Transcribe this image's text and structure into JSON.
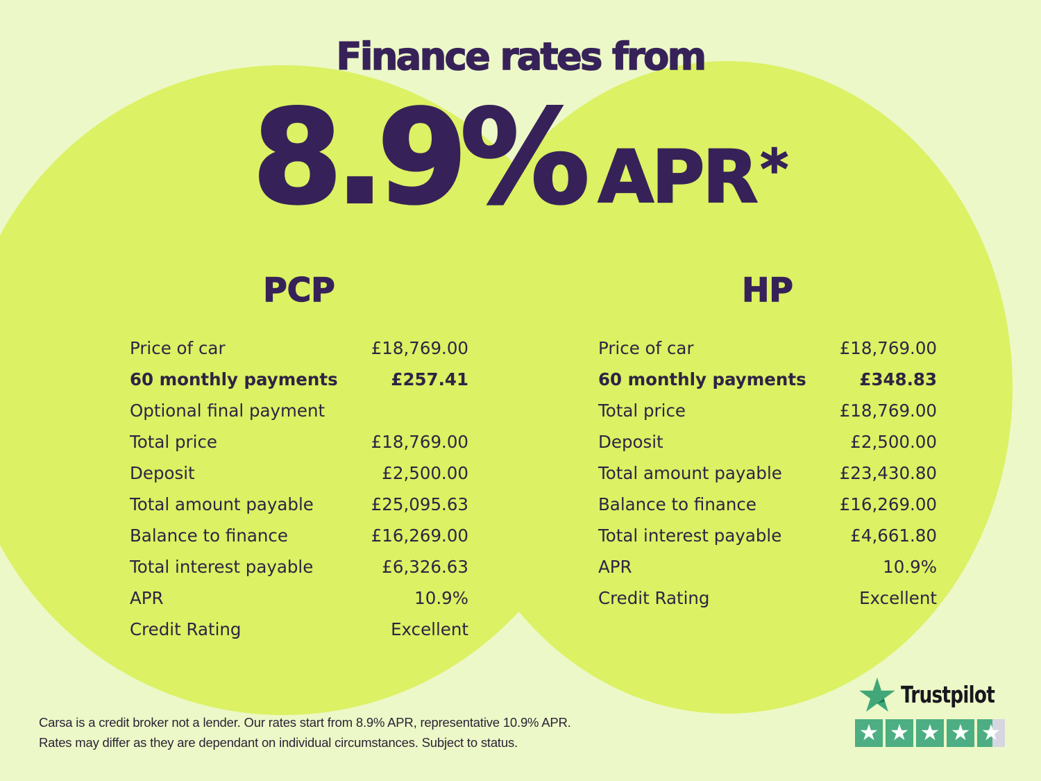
{
  "title": "Finance rates from",
  "hero": {
    "rate": "8.9%",
    "unit": "APR",
    "asterisk": "*"
  },
  "tables": [
    {
      "header": "PCP",
      "rows": [
        {
          "label": "Price of car",
          "value": "£18,769.00"
        },
        {
          "label": "60 monthly payments",
          "value": "£257.41",
          "bold": true
        },
        {
          "label": "Optional final payment",
          "value": ""
        },
        {
          "label": "Total price",
          "value": "£18,769.00"
        },
        {
          "label": "Deposit",
          "value": "£2,500.00"
        },
        {
          "label": "Total amount payable",
          "value": "£25,095.63"
        },
        {
          "label": "Balance to finance",
          "value": "£16,269.00"
        },
        {
          "label": "Total interest payable",
          "value": "£6,326.63"
        },
        {
          "label": "APR",
          "value": "10.9%"
        },
        {
          "label": "Credit Rating",
          "value": "Excellent"
        }
      ]
    },
    {
      "header": "HP",
      "rows": [
        {
          "label": "Price of car",
          "value": "£18,769.00"
        },
        {
          "label": "60 monthly payments",
          "value": "£348.83",
          "bold": true
        },
        {
          "label": "Total price",
          "value": "£18,769.00"
        },
        {
          "label": "Deposit",
          "value": "£2,500.00"
        },
        {
          "label": "Total amount payable",
          "value": "£23,430.80"
        },
        {
          "label": "Balance to finance",
          "value": "£16,269.00"
        },
        {
          "label": "Total interest payable",
          "value": "£4,661.80"
        },
        {
          "label": "APR",
          "value": "10.9%"
        },
        {
          "label": "Credit Rating",
          "value": "Excellent"
        }
      ]
    }
  ],
  "disclaimer": {
    "line1": "Carsa is a credit broker not a lender. Our rates start from 8.9% APR, representative 10.9% APR.",
    "line2": "Rates may differ as they are dependant on individual circumstances. Subject to status."
  },
  "trustpilot": {
    "brand": "Trustpilot",
    "star_glyph": "★",
    "star_fills": [
      100,
      100,
      100,
      100,
      55
    ]
  },
  "colors": {
    "background": "#ecf8c7",
    "circle": "#dcf163",
    "heading": "#362258",
    "body_text": "#2e2444",
    "disclaimer_text": "#2b2336",
    "brand_text": "#17171d",
    "tp_green": "#41a779",
    "tp_green_dark": "#147a55",
    "star_box_green": "#4cae82",
    "star_box_gray": "#d6d6e1"
  }
}
